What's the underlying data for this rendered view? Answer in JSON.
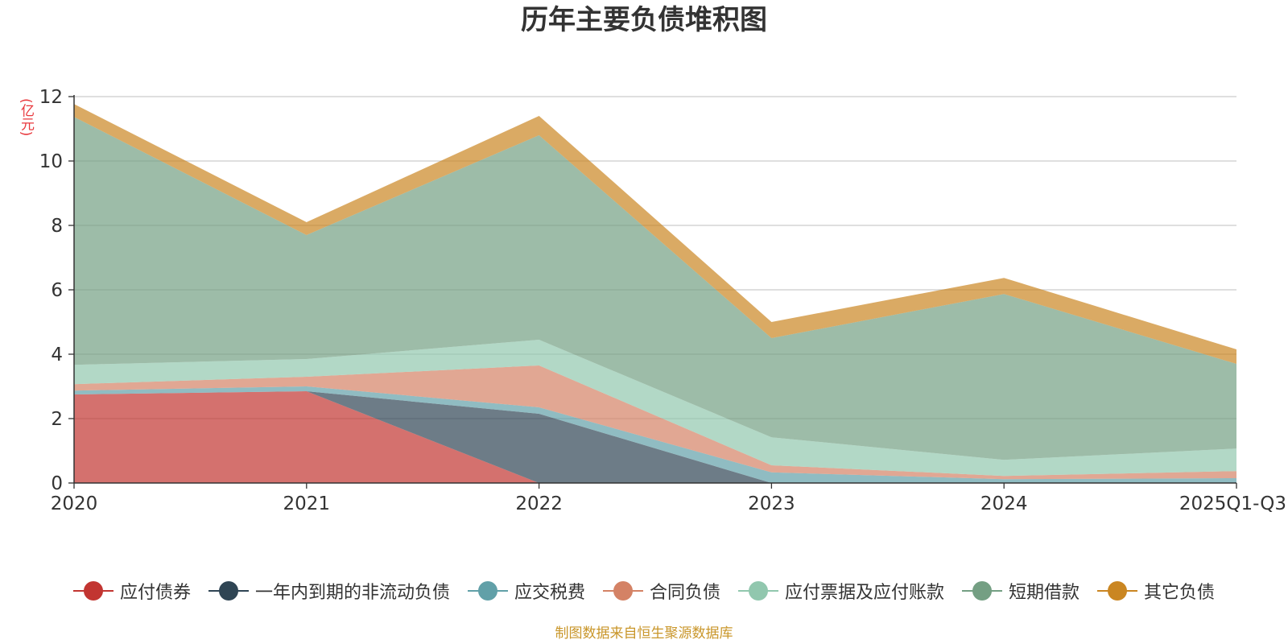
{
  "chart_data": {
    "type": "area",
    "stacked": true,
    "title": "历年主要负债堆积图",
    "ylabel": "(亿元)",
    "xlabel": "",
    "ylim": [
      0,
      12
    ],
    "yticks": [
      0,
      2,
      4,
      6,
      8,
      10,
      12
    ],
    "categories": [
      "2020",
      "2021",
      "2022",
      "2023",
      "2024",
      "2025Q1-Q3"
    ],
    "series": [
      {
        "name": "应付债券",
        "color": "#c23531",
        "values": [
          2.75,
          2.85,
          0.0,
          0.0,
          0.0,
          0.0
        ]
      },
      {
        "name": "一年内到期的非流动负债",
        "color": "#2f4554",
        "values": [
          0.0,
          0.0,
          2.15,
          0.0,
          0.0,
          0.0
        ]
      },
      {
        "name": "应交税费",
        "color": "#61a0a8",
        "values": [
          0.12,
          0.15,
          0.2,
          0.33,
          0.12,
          0.15
        ]
      },
      {
        "name": "合同负债",
        "color": "#d48265",
        "values": [
          0.2,
          0.3,
          1.3,
          0.22,
          0.1,
          0.22
        ]
      },
      {
        "name": "应付票据及应付账款",
        "color": "#91c7ae",
        "values": [
          0.6,
          0.55,
          0.8,
          0.87,
          0.5,
          0.7
        ]
      },
      {
        "name": "短期借款",
        "color": "#749f83",
        "values": [
          7.7,
          3.85,
          6.35,
          3.08,
          5.15,
          2.63
        ]
      },
      {
        "name": "其它负债",
        "color": "#ca8622",
        "values": [
          0.4,
          0.4,
          0.6,
          0.5,
          0.5,
          0.45
        ]
      }
    ],
    "grid": true,
    "legend_position": "bottom"
  },
  "source_note": "制图数据来自恒生聚源数据库"
}
